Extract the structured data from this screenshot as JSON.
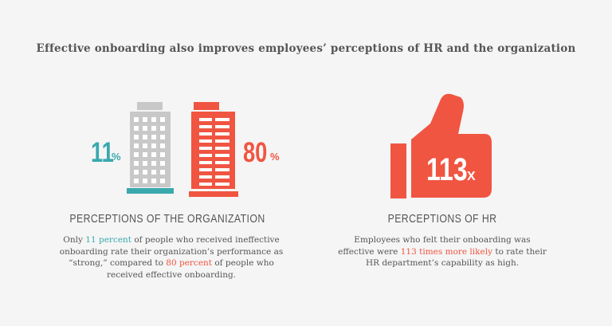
{
  "title": "Effective onboarding also improves employees’ perceptions of HR and the organization",
  "org": {
    "stat_low_number": "11",
    "stat_low_unit": "%",
    "stat_high_number": "80",
    "stat_high_unit": "%",
    "heading": "PERCEPTIONS OF THE ORGANIZATION",
    "body": {
      "pre": "Only ",
      "hl1": "11 percent",
      "mid": " of people who received ineffective onboarding rate their organization’s performance as “strong,” compared to ",
      "hl2": "80 percent",
      "post": " of people who received effective onboarding."
    },
    "colors": {
      "gray_building": "#c8c8c8",
      "red_building": "#f05541",
      "teal": "#3aa9ad"
    }
  },
  "hr": {
    "stat_number": "113",
    "stat_unit": "X",
    "heading": "PERCEPTIONS OF HR",
    "body": {
      "pre": "Employees who felt their onboarding was effective were ",
      "hl": "113 times more likely",
      "post": " to rate their HR department’s capability as high."
    },
    "icon": "thumbs-up-icon",
    "color": "#f05541"
  }
}
